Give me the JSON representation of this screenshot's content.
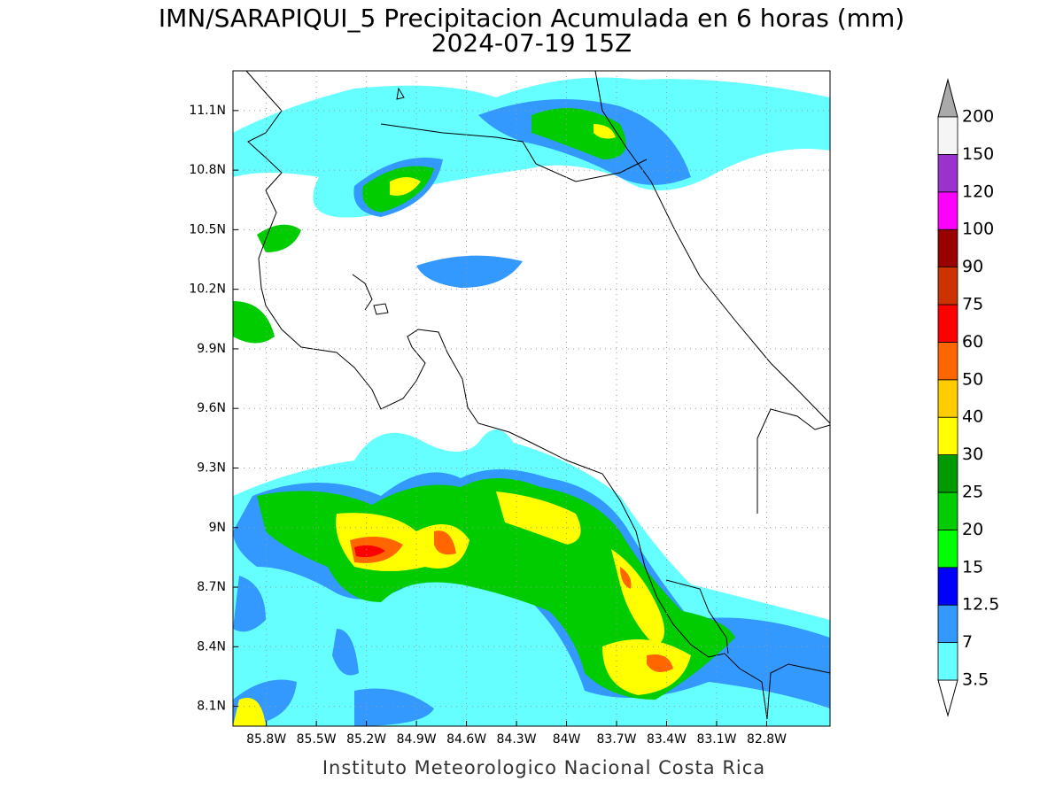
{
  "title": "IMN/SARAPIQUI_5 Precipitacion Acumulada en 6 horas (mm)",
  "subtitle": "2024-07-19 15Z",
  "footer": "Instituto Meteorologico Nacional Costa Rica",
  "map": {
    "xlim": [
      -86.0,
      -82.42
    ],
    "ylim": [
      8.0,
      11.3
    ],
    "xticks": [
      {
        "value": -85.8,
        "label": "85.8W"
      },
      {
        "value": -85.5,
        "label": "85.5W"
      },
      {
        "value": -85.2,
        "label": "85.2W"
      },
      {
        "value": -84.9,
        "label": "84.9W"
      },
      {
        "value": -84.6,
        "label": "84.6W"
      },
      {
        "value": -84.3,
        "label": "84.3W"
      },
      {
        "value": -84,
        "label": "84W"
      },
      {
        "value": -83.7,
        "label": "83.7W"
      },
      {
        "value": -83.4,
        "label": "83.4W"
      },
      {
        "value": -83.1,
        "label": "83.1W"
      },
      {
        "value": -82.8,
        "label": "82.8W"
      }
    ],
    "yticks": [
      {
        "value": 8.1,
        "label": "8.1N"
      },
      {
        "value": 8.4,
        "label": "8.4N"
      },
      {
        "value": 8.7,
        "label": "8.7N"
      },
      {
        "value": 9,
        "label": "9N"
      },
      {
        "value": 9.3,
        "label": "9.3N"
      },
      {
        "value": 9.6,
        "label": "9.6N"
      },
      {
        "value": 9.9,
        "label": "9.9N"
      },
      {
        "value": 10.2,
        "label": "10.2N"
      },
      {
        "value": 10.5,
        "label": "10.5N"
      },
      {
        "value": 10.8,
        "label": "10.8N"
      },
      {
        "value": 11.1,
        "label": "11.1N"
      }
    ],
    "grid": true
  },
  "colorbar": {
    "levels": [
      3.5,
      7,
      12.5,
      15,
      20,
      25,
      30,
      40,
      50,
      60,
      75,
      90,
      100,
      120,
      150,
      200
    ],
    "colors": [
      "#66ffff",
      "#3399ff",
      "#0000ff",
      "#00ff00",
      "#00cc00",
      "#009900",
      "#ffff00",
      "#ffcc00",
      "#ff6600",
      "#ff0000",
      "#cc3300",
      "#990000",
      "#ff00ff",
      "#9933cc",
      "#f5f5f5"
    ],
    "under_color": "#ffffff",
    "over_color": "#aaaaaa"
  }
}
